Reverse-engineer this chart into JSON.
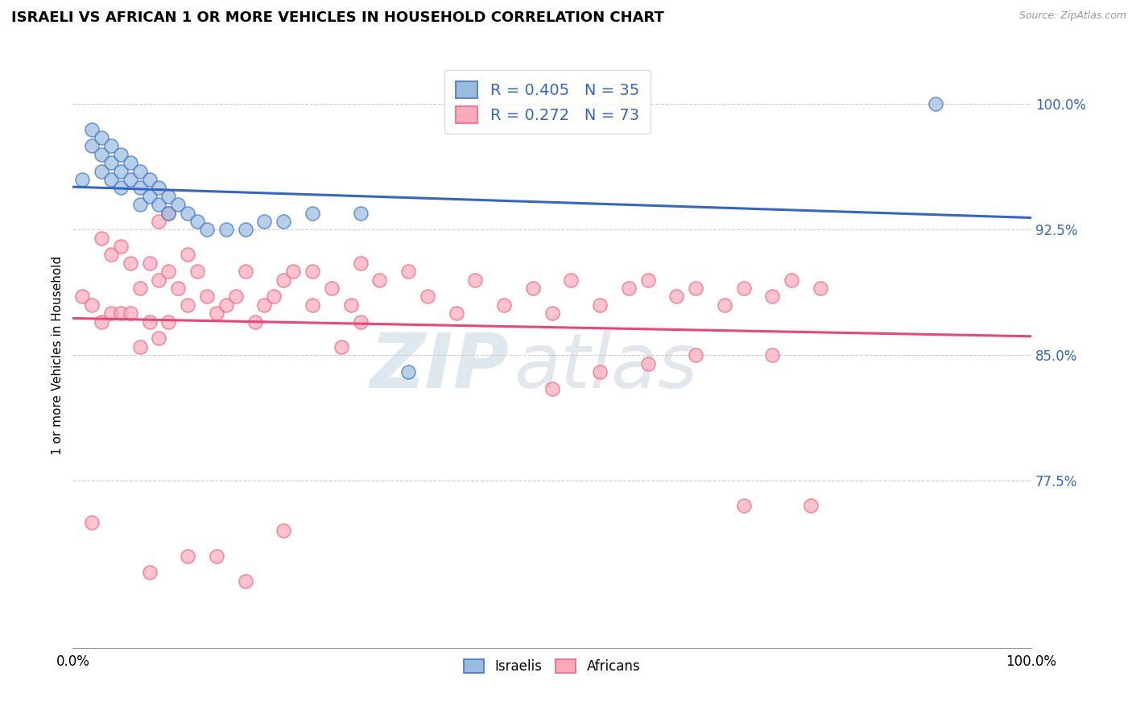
{
  "title": "ISRAELI VS AFRICAN 1 OR MORE VEHICLES IN HOUSEHOLD CORRELATION CHART",
  "source_text": "Source: ZipAtlas.com",
  "ylabel": "1 or more Vehicles in Household",
  "watermark_zip": "ZIP",
  "watermark_atlas": "atlas",
  "xlim": [
    0.0,
    1.0
  ],
  "ylim": [
    0.675,
    1.025
  ],
  "x_ticks": [
    0.0,
    1.0
  ],
  "x_tick_labels": [
    "0.0%",
    "100.0%"
  ],
  "y_ticks_right": [
    0.775,
    0.85,
    0.925,
    1.0
  ],
  "y_tick_labels_right": [
    "77.5%",
    "85.0%",
    "92.5%",
    "100.0%"
  ],
  "legend_label_israeli": "R = 0.405   N = 35",
  "legend_label_african": "R = 0.272   N = 73",
  "color_israeli_fill": "#99BBDD",
  "color_israeli_edge": "#4477CC",
  "color_african_fill": "#FFAABB",
  "color_african_edge": "#EE6688",
  "color_trendline_israeli": "#3366CC",
  "color_trendline_african": "#EE4477",
  "color_grid": "#BBBBBB",
  "color_ytick_right": "#3366CC",
  "isr_x": [
    0.01,
    0.02,
    0.02,
    0.03,
    0.03,
    0.03,
    0.04,
    0.04,
    0.04,
    0.05,
    0.05,
    0.05,
    0.06,
    0.06,
    0.07,
    0.07,
    0.07,
    0.08,
    0.08,
    0.09,
    0.09,
    0.1,
    0.1,
    0.11,
    0.12,
    0.13,
    0.14,
    0.16,
    0.18,
    0.2,
    0.22,
    0.25,
    0.3,
    0.35,
    0.9
  ],
  "isr_y": [
    0.955,
    0.985,
    0.975,
    0.98,
    0.97,
    0.96,
    0.975,
    0.965,
    0.955,
    0.97,
    0.96,
    0.95,
    0.965,
    0.955,
    0.96,
    0.95,
    0.94,
    0.955,
    0.945,
    0.95,
    0.94,
    0.945,
    0.935,
    0.94,
    0.935,
    0.93,
    0.925,
    0.925,
    0.925,
    0.93,
    0.93,
    0.935,
    0.935,
    0.84,
    1.0
  ],
  "afr_x": [
    0.01,
    0.02,
    0.02,
    0.03,
    0.03,
    0.04,
    0.04,
    0.05,
    0.05,
    0.06,
    0.06,
    0.07,
    0.07,
    0.08,
    0.08,
    0.09,
    0.09,
    0.09,
    0.1,
    0.1,
    0.1,
    0.11,
    0.12,
    0.12,
    0.13,
    0.14,
    0.15,
    0.16,
    0.17,
    0.18,
    0.19,
    0.2,
    0.21,
    0.22,
    0.23,
    0.25,
    0.25,
    0.27,
    0.29,
    0.3,
    0.3,
    0.32,
    0.35,
    0.37,
    0.4,
    0.42,
    0.45,
    0.48,
    0.5,
    0.52,
    0.55,
    0.58,
    0.6,
    0.63,
    0.65,
    0.68,
    0.7,
    0.73,
    0.75,
    0.78,
    0.5,
    0.55,
    0.6,
    0.65,
    0.7,
    0.73,
    0.77,
    0.28,
    0.22,
    0.18,
    0.15,
    0.12,
    0.08
  ],
  "afr_y": [
    0.885,
    0.75,
    0.88,
    0.87,
    0.92,
    0.875,
    0.91,
    0.875,
    0.915,
    0.875,
    0.905,
    0.855,
    0.89,
    0.87,
    0.905,
    0.86,
    0.895,
    0.93,
    0.87,
    0.9,
    0.935,
    0.89,
    0.88,
    0.91,
    0.9,
    0.885,
    0.875,
    0.88,
    0.885,
    0.9,
    0.87,
    0.88,
    0.885,
    0.895,
    0.9,
    0.88,
    0.9,
    0.89,
    0.88,
    0.87,
    0.905,
    0.895,
    0.9,
    0.885,
    0.875,
    0.895,
    0.88,
    0.89,
    0.875,
    0.895,
    0.88,
    0.89,
    0.895,
    0.885,
    0.89,
    0.88,
    0.89,
    0.885,
    0.895,
    0.89,
    0.83,
    0.84,
    0.845,
    0.85,
    0.76,
    0.85,
    0.76,
    0.855,
    0.745,
    0.715,
    0.73,
    0.73,
    0.72
  ]
}
